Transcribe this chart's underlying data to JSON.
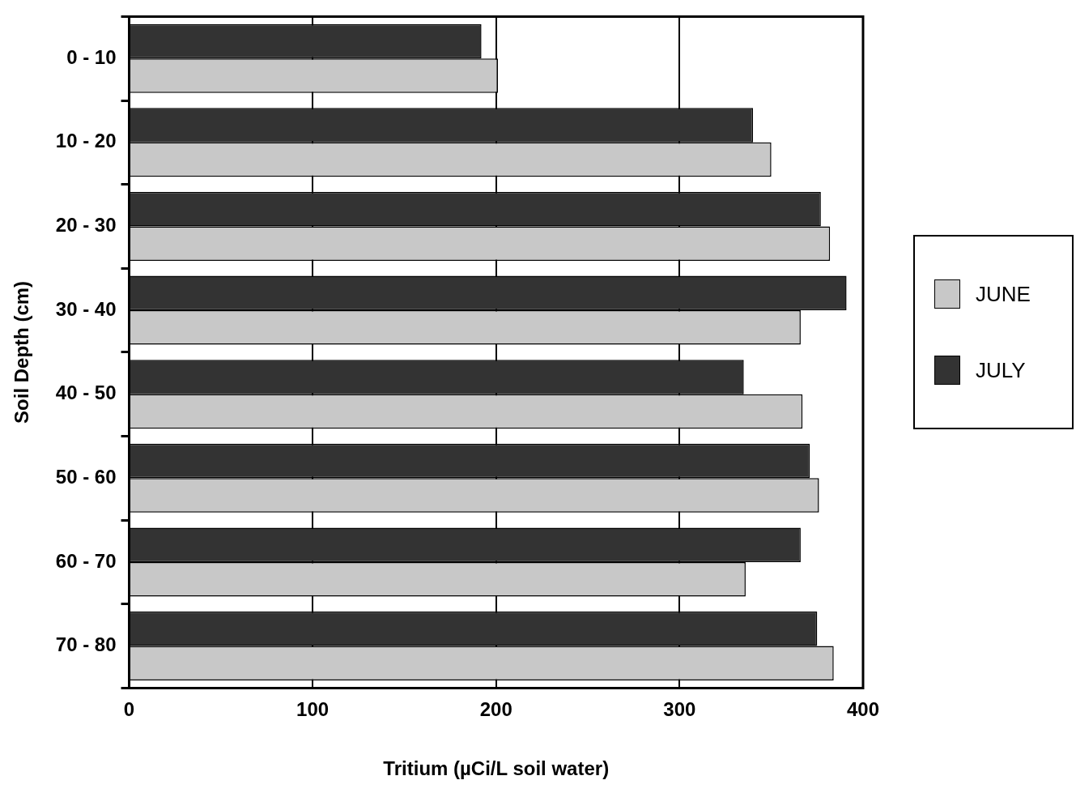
{
  "chart_data": {
    "type": "bar",
    "orientation": "horizontal",
    "xlabel": "Tritium (µCi/L soil water)",
    "ylabel": "Soil Depth (cm)",
    "categories": [
      "0 - 10",
      "10 - 20",
      "20 - 30",
      "30 - 40",
      "40 - 50",
      "50 - 60",
      "60 - 70",
      "70 - 80"
    ],
    "series": [
      {
        "name": "JUNE",
        "color": "#c8c8c8",
        "values": [
          201,
          350,
          382,
          366,
          367,
          376,
          336,
          384
        ]
      },
      {
        "name": "JULY",
        "color": "#333333",
        "values": [
          192,
          340,
          377,
          391,
          335,
          371,
          366,
          375
        ]
      }
    ],
    "xlim": [
      0,
      400
    ],
    "xticks": [
      0,
      100,
      200,
      300,
      400
    ],
    "grid": "x",
    "legend": "right"
  }
}
